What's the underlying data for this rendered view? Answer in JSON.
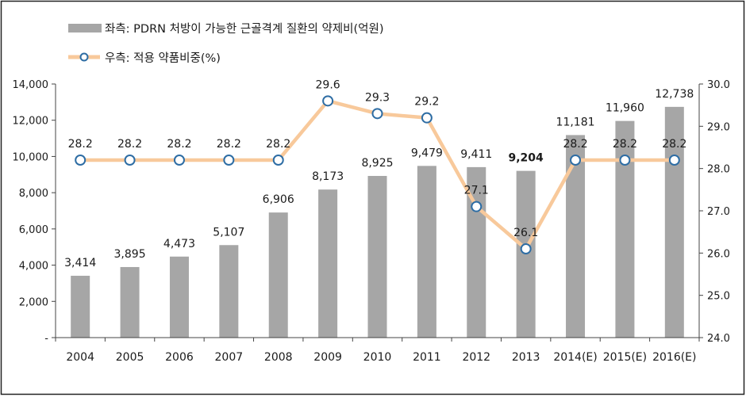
{
  "legend": {
    "bar_label": "좌측: PDRN 처방이 가능한 근골격계 질환의 약제비(억원)",
    "line_label": "우측: 적용 약품비중(%)"
  },
  "chart_data": {
    "type": "bar",
    "categories": [
      "2004",
      "2005",
      "2006",
      "2007",
      "2008",
      "2009",
      "2010",
      "2011",
      "2012",
      "2013",
      "2014(E)",
      "2015(E)",
      "2016(E)"
    ],
    "series": [
      {
        "name": "좌측: PDRN 처방이 가능한 근골격계 질환의 약제비(억원)",
        "type": "bar",
        "axis": "left",
        "values": [
          3414,
          3895,
          4473,
          5107,
          6906,
          8173,
          8925,
          9479,
          9411,
          9204,
          11181,
          11960,
          12738
        ],
        "labels": [
          "3,414",
          "3,895",
          "4,473",
          "5,107",
          "6,906",
          "8,173",
          "8,925",
          "9,479",
          "9,411",
          "9,204",
          "11,181",
          "11,960",
          "12,738"
        ],
        "bold_label_index": 9
      },
      {
        "name": "우측: 적용 약품비중(%)",
        "type": "line",
        "axis": "right",
        "values": [
          28.2,
          28.2,
          28.2,
          28.2,
          28.2,
          29.6,
          29.3,
          29.2,
          27.1,
          26.1,
          28.2,
          28.2,
          28.2
        ],
        "labels": [
          "28.2",
          "28.2",
          "28.2",
          "28.2",
          "28.2",
          "29.6",
          "29.3",
          "29.2",
          "27.1",
          "26.1",
          "28.2",
          "28.2",
          "28.2"
        ]
      }
    ],
    "y_left": {
      "ylim": [
        0,
        14000
      ],
      "ticks": [
        0,
        2000,
        4000,
        6000,
        8000,
        10000,
        12000,
        14000
      ],
      "tick_labels": [
        "-",
        "2,000",
        "4,000",
        "6,000",
        "8,000",
        "10,000",
        "12,000",
        "14,000"
      ]
    },
    "y_right": {
      "ylim": [
        24.0,
        30.0
      ],
      "ticks": [
        24,
        25,
        26,
        27,
        28,
        29,
        30
      ],
      "tick_labels": [
        "24.0",
        "25.0",
        "26.0",
        "27.0",
        "28.0",
        "29.0",
        "30.0"
      ]
    },
    "grid": false,
    "legend_position": "top-left",
    "colors": {
      "bar": "#a6a6a6",
      "line": "#f8c99b",
      "marker_edge": "#2e6da4",
      "marker_fill": "#ffffff"
    }
  }
}
